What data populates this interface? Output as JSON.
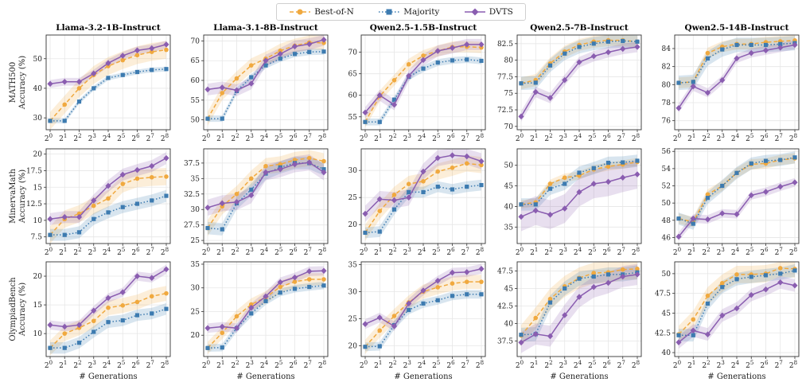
{
  "legend": {
    "best_label": "Best-of-N",
    "majority_label": "Majority",
    "dvts_label": "DVTS"
  },
  "colors": {
    "best_of_n": "#f0a93f",
    "majority": "#3d7bb0",
    "dvts": "#8a5db0"
  },
  "xlabel": "# Generations",
  "chart_data": {
    "type": "line",
    "x": [
      1,
      2,
      4,
      8,
      16,
      32,
      64,
      128,
      256
    ],
    "x_tick_labels": [
      "2^0",
      "2^1",
      "2^2",
      "2^3",
      "2^4",
      "2^5",
      "2^6",
      "2^7",
      "2^8"
    ],
    "x_scale": "log2",
    "grid": true,
    "legend_position": "top-center",
    "columns": [
      "Llama-3.2-1B-Instruct",
      "Llama-3.1-8B-Instruct",
      "Qwen2.5-1.5B-Instruct",
      "Qwen2.5-7B-Instruct",
      "Qwen2.5-14B-Instruct"
    ],
    "rows": [
      {
        "ylabel_line1": "MATH500",
        "ylabel_line2": "Accuracy (%)"
      },
      {
        "ylabel_line1": "MinervaMath",
        "ylabel_line2": "Accuracy (%)"
      },
      {
        "ylabel_line1": "OlympiadBench",
        "ylabel_line2": "Accuracy (%)"
      }
    ],
    "panels": [
      {
        "row": 0,
        "col": 0,
        "title": "Llama-3.2-1B-Instruct",
        "ylim": [
          26,
          58
        ],
        "yticks": [
          30,
          40,
          50
        ],
        "series": [
          {
            "name": "Best-of-N",
            "values": [
              29,
              34.5,
              40,
              44.5,
              47.5,
              49.5,
              51.2,
              52.3,
              53
            ],
            "band": 3
          },
          {
            "name": "Majority",
            "values": [
              29,
              29,
              35.5,
              40,
              43.5,
              44.5,
              45.5,
              46.2,
              46.5
            ],
            "band": 0.8
          },
          {
            "name": "DVTS",
            "values": [
              41.5,
              42.2,
              42.2,
              45,
              48.5,
              51,
              52.8,
              53.5,
              54.8
            ],
            "band": 1.3
          }
        ]
      },
      {
        "row": 0,
        "col": 1,
        "title": "Llama-3.1-8B-Instruct",
        "ylim": [
          47.5,
          71.5
        ],
        "yticks": [
          50,
          55,
          60,
          65,
          70
        ],
        "series": [
          {
            "name": "Best-of-N",
            "values": [
              50.3,
              56.8,
              60.5,
              63.8,
              65.5,
              67.5,
              68.8,
              69.6,
              69.5
            ],
            "band": 1.8
          },
          {
            "name": "Majority",
            "values": [
              50.3,
              50.3,
              57.3,
              60.8,
              63.8,
              65.5,
              66.7,
              67.2,
              67.3
            ],
            "band": 0.8
          },
          {
            "name": "DVTS",
            "values": [
              57.7,
              58.2,
              57.5,
              59.2,
              65,
              66.7,
              68.6,
              69.2,
              70.3
            ],
            "band": 1.5
          }
        ]
      },
      {
        "row": 0,
        "col": 2,
        "title": "Qwen2.5-1.5B-Instruct",
        "ylim": [
          52,
          74
        ],
        "yticks": [
          55,
          60,
          65,
          70
        ],
        "series": [
          {
            "name": "Best-of-N",
            "values": [
              53.8,
              59.8,
              63.5,
              67.2,
              69.2,
              70.3,
              71.2,
              71.3,
              71.1
            ],
            "band": 1.3
          },
          {
            "name": "Majority",
            "values": [
              53.8,
              53.8,
              59,
              64.3,
              66.2,
              67.6,
              68.1,
              68.3,
              68
            ],
            "band": 0.8
          },
          {
            "name": "DVTS",
            "values": [
              56,
              60,
              57.8,
              64.5,
              68.2,
              70.3,
              71,
              71.8,
              71.8
            ],
            "band": 1.3
          }
        ]
      },
      {
        "row": 0,
        "col": 3,
        "title": "Qwen2.5-7B-Instruct",
        "ylim": [
          69.5,
          83.8
        ],
        "yticks": [
          70,
          72.5,
          75,
          77.5,
          80,
          82.5
        ],
        "series": [
          {
            "name": "Best-of-N",
            "values": [
              76.5,
              77,
              79.5,
              81.3,
              82.3,
              82.8,
              83,
              83,
              82.8
            ],
            "band": 0.9
          },
          {
            "name": "Majority",
            "values": [
              76.5,
              76.6,
              79.2,
              81,
              82,
              82.5,
              82.8,
              82.9,
              82.8
            ],
            "band": 1
          },
          {
            "name": "DVTS",
            "values": [
              71.5,
              75.2,
              74.3,
              77,
              79.7,
              80.6,
              81.2,
              81.7,
              82
            ],
            "band": 0.8
          }
        ]
      },
      {
        "row": 0,
        "col": 4,
        "title": "Qwen2.5-14B-Instruct",
        "ylim": [
          75,
          85.5
        ],
        "yticks": [
          76,
          78,
          80,
          82,
          84
        ],
        "series": [
          {
            "name": "Best-of-N",
            "values": [
              80.2,
              80.3,
              83.5,
              84.2,
              84.5,
              84.5,
              84.7,
              84.8,
              84.9
            ],
            "band": 0.6
          },
          {
            "name": "Majority",
            "values": [
              80.2,
              80.3,
              82.9,
              83.9,
              84.4,
              84.4,
              84.4,
              84.5,
              84.6
            ],
            "band": 0.8
          },
          {
            "name": "DVTS",
            "values": [
              77.4,
              79.8,
              79.1,
              80.5,
              82.9,
              83.5,
              83.8,
              84.1,
              84.4
            ],
            "band": 0.5
          }
        ]
      },
      {
        "row": 1,
        "col": 0,
        "title": "",
        "ylim": [
          6.5,
          20.8
        ],
        "yticks": [
          7.5,
          10,
          12.5,
          15,
          17.5,
          20
        ],
        "series": [
          {
            "name": "Best-of-N",
            "values": [
              7.8,
              10.2,
              11,
              12.2,
              13.3,
              15.5,
              16.3,
              16.5,
              16.6
            ],
            "band": 1.3
          },
          {
            "name": "Majority",
            "values": [
              7.8,
              7.8,
              8.2,
              10.2,
              11.2,
              12,
              12.5,
              13,
              13.7
            ],
            "band": 0.9
          },
          {
            "name": "DVTS",
            "values": [
              10.2,
              10.5,
              10.5,
              13,
              15.2,
              16.9,
              17.6,
              18.2,
              19.4
            ],
            "band": 0.9
          }
        ]
      },
      {
        "row": 1,
        "col": 1,
        "title": "",
        "ylim": [
          24.5,
          39.8
        ],
        "yticks": [
          25,
          27.5,
          30,
          32.5,
          35,
          37.5
        ],
        "series": [
          {
            "name": "Best-of-N",
            "values": [
              27,
              30.5,
              32.5,
              35,
              37,
              37.3,
              38,
              38.3,
              37.8
            ],
            "band": 1.3
          },
          {
            "name": "Majority",
            "values": [
              27,
              26.8,
              31,
              33.2,
              35.8,
              36.8,
              37.5,
              37.5,
              36.5
            ],
            "band": 1
          },
          {
            "name": "DVTS",
            "values": [
              30.3,
              31,
              31.2,
              32.3,
              36,
              36.5,
              37.3,
              37.6,
              36
            ],
            "band": 1.3
          }
        ]
      },
      {
        "row": 1,
        "col": 2,
        "title": "",
        "ylim": [
          16.5,
          34
        ],
        "yticks": [
          20,
          25,
          30
        ],
        "series": [
          {
            "name": "Best-of-N",
            "values": [
              18.5,
              22.5,
              25.5,
              27.5,
              28,
              29.8,
              30.5,
              31.3,
              31
            ],
            "band": 1.5
          },
          {
            "name": "Majority",
            "values": [
              18.5,
              18.7,
              22.8,
              26,
              26,
              27,
              26.5,
              27,
              27.3
            ],
            "band": 1
          },
          {
            "name": "DVTS",
            "values": [
              22,
              24.7,
              24.5,
              25,
              29.8,
              32.3,
              32.8,
              32.6,
              31.7
            ],
            "band": 1.5
          }
        ]
      },
      {
        "row": 1,
        "col": 3,
        "title": "",
        "ylim": [
          31,
          54
        ],
        "yticks": [
          35,
          40,
          45,
          50
        ],
        "series": [
          {
            "name": "Best-of-N",
            "values": [
              40.5,
              41,
              45.5,
              47,
              47.5,
              49,
              49.7,
              50.2,
              50.8
            ],
            "band": 1
          },
          {
            "name": "Majority",
            "values": [
              40.5,
              40.5,
              44.3,
              45.5,
              48.2,
              49.3,
              50.6,
              50.7,
              51.1
            ],
            "band": 1.5
          },
          {
            "name": "DVTS",
            "values": [
              37.5,
              39,
              38,
              39.5,
              43.5,
              45.5,
              46,
              47,
              47.8
            ],
            "band": 3.5
          }
        ]
      },
      {
        "row": 1,
        "col": 4,
        "title": "",
        "ylim": [
          45.3,
          56.3
        ],
        "yticks": [
          46,
          48,
          50,
          52,
          54,
          56
        ],
        "series": [
          {
            "name": "Best-of-N",
            "values": [
              48.2,
              47.8,
              51,
              52,
              53.5,
              54.5,
              54.6,
              55,
              55.2
            ],
            "band": 0.6
          },
          {
            "name": "Majority",
            "values": [
              48.2,
              47.6,
              50.6,
              52,
              53.5,
              54.6,
              54.9,
              55,
              55.3
            ],
            "band": 0.7
          },
          {
            "name": "DVTS",
            "values": [
              46.1,
              48.2,
              48.1,
              48.8,
              48.7,
              50.9,
              51.3,
              51.9,
              52.4
            ],
            "band": 0.5
          }
        ]
      },
      {
        "row": 2,
        "col": 0,
        "title": "",
        "ylim": [
          6,
          22.5
        ],
        "yticks": [
          10,
          15,
          20
        ],
        "series": [
          {
            "name": "Best-of-N",
            "values": [
              7.5,
              10,
              11,
              12.2,
              14.5,
              14.9,
              15.5,
              16.5,
              17
            ],
            "band": 1.3
          },
          {
            "name": "Majority",
            "values": [
              7.5,
              7.5,
              8.4,
              10.3,
              12,
              12.3,
              13.2,
              13.5,
              14.3
            ],
            "band": 1
          },
          {
            "name": "DVTS",
            "values": [
              11.5,
              11.2,
              11.5,
              14,
              16.2,
              17.2,
              20,
              19.7,
              21.2
            ],
            "band": 0.8
          }
        ]
      },
      {
        "row": 2,
        "col": 1,
        "title": "",
        "ylim": [
          15.5,
          35.5
        ],
        "yticks": [
          20,
          25,
          30,
          35
        ],
        "series": [
          {
            "name": "Best-of-N",
            "values": [
              17.3,
              20.5,
              24,
              26.5,
              28,
              30.2,
              31.3,
              31.8,
              31.8
            ],
            "band": 1.3
          },
          {
            "name": "Majority",
            "values": [
              17.3,
              17.4,
              21.5,
              24.6,
              27.2,
              29,
              29.8,
              30.2,
              30.5
            ],
            "band": 0.8
          },
          {
            "name": "DVTS",
            "values": [
              21.5,
              21.8,
              21.5,
              25.8,
              28.2,
              31.2,
              32.2,
              33.5,
              33.6
            ],
            "band": 1
          }
        ]
      },
      {
        "row": 2,
        "col": 2,
        "title": "",
        "ylim": [
          18,
          35.5
        ],
        "yticks": [
          20,
          25,
          30,
          35
        ],
        "series": [
          {
            "name": "Best-of-N",
            "values": [
              19.8,
              22.8,
              25.5,
              28,
              30,
              30.8,
              31.5,
              31.8,
              31.8
            ],
            "band": 1.3
          },
          {
            "name": "Majority",
            "values": [
              19.8,
              19.9,
              23.8,
              26.6,
              27.8,
              28.4,
              29.2,
              29.5,
              29.5
            ],
            "band": 0.8
          },
          {
            "name": "DVTS",
            "values": [
              24,
              25.2,
              23.6,
              27.8,
              30.2,
              32,
              33.5,
              33.6,
              34.2
            ],
            "band": 0.9
          }
        ]
      },
      {
        "row": 2,
        "col": 3,
        "title": "",
        "ylim": [
          35.3,
          48.8
        ],
        "yticks": [
          37.5,
          40,
          42.5,
          45,
          47.5
        ],
        "series": [
          {
            "name": "Best-of-N",
            "values": [
              38.3,
              40.8,
              43.5,
              45.3,
              46.5,
              47.2,
              47.3,
              47.7,
              47.8
            ],
            "band": 1.5
          },
          {
            "name": "Majority",
            "values": [
              38.4,
              38.5,
              43,
              45,
              46.4,
              46.7,
              47,
              47,
              47.3
            ],
            "band": 1
          },
          {
            "name": "DVTS",
            "values": [
              37.3,
              38.5,
              38.2,
              41.2,
              43.8,
              45.2,
              45.8,
              46.7,
              47
            ],
            "band": 1.5
          }
        ]
      },
      {
        "row": 2,
        "col": 4,
        "title": "",
        "ylim": [
          39.5,
          51.5
        ],
        "yticks": [
          40,
          42.5,
          45,
          47.5,
          50
        ],
        "series": [
          {
            "name": "Best-of-N",
            "values": [
              42.3,
              44.2,
              47.2,
              48.8,
              49.9,
              49.9,
              50,
              50.7,
              50.6
            ],
            "band": 1.1
          },
          {
            "name": "Majority",
            "values": [
              42.2,
              42.2,
              46.2,
              48.3,
              49.3,
              49.6,
              49.8,
              50,
              50.4
            ],
            "band": 0.8
          },
          {
            "name": "DVTS",
            "values": [
              41.3,
              42.8,
              42.3,
              44.7,
              45.6,
              47.3,
              48,
              48.9,
              48.5
            ],
            "band": 0.8
          }
        ]
      }
    ]
  }
}
